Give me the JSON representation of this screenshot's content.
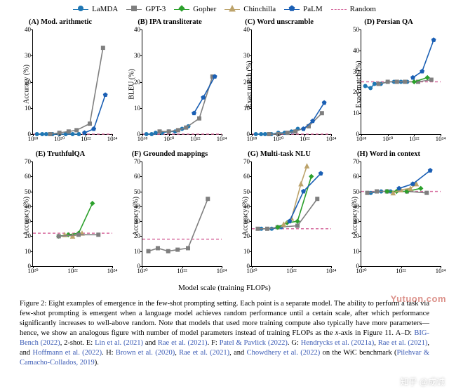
{
  "colors": {
    "lamda": "#1f77b4",
    "gpt3": "#7f7f7f",
    "gopher": "#2ca02c",
    "chinchilla": "#bca36b",
    "palm": "#1a5fb4",
    "random": "#d66b9e",
    "axis": "#000000",
    "bg": "#ffffff",
    "watermark1": "#c0392b"
  },
  "legend": [
    {
      "key": "lamda",
      "label": "LaMDA",
      "marker": "circle",
      "line": "solid"
    },
    {
      "key": "gpt3",
      "label": "GPT-3",
      "marker": "square",
      "line": "solid"
    },
    {
      "key": "gopher",
      "label": "Gopher",
      "marker": "diamond",
      "line": "solid"
    },
    {
      "key": "chinchilla",
      "label": "Chinchilla",
      "marker": "triangle",
      "line": "solid"
    },
    {
      "key": "palm",
      "label": "PaLM",
      "marker": "pentagon",
      "line": "solid"
    },
    {
      "key": "random",
      "label": "Random",
      "marker": "none",
      "line": "dashed"
    }
  ],
  "layout": {
    "rows": 2,
    "cols": 4,
    "marker_size": 6,
    "line_width": 1.6,
    "font_family": "serif",
    "title_fontsize": 10.5,
    "axis_fontsize": 10,
    "tick_fontsize": 9
  },
  "x_axis": {
    "label": "Model scale (training FLOPs)",
    "scale": "log",
    "lim": [
      1e+18,
      1e+24
    ],
    "ticks": [
      1e+18,
      1e+20,
      1e+22,
      1e+24
    ],
    "tick_labels": [
      "10¹⁸",
      "10²⁰",
      "10²²",
      "10²⁴"
    ]
  },
  "x_axis_row2": {
    "lim": [
      1e+20,
      1e+24
    ],
    "ticks": [
      1e+20,
      1e+22,
      1e+24
    ],
    "tick_labels": [
      "10²⁰",
      "10²²",
      "10²⁴"
    ]
  },
  "panels": [
    {
      "id": "A",
      "title": "(A) Mod. arithmetic",
      "ylabel": "Accuracy (%)",
      "ylim": [
        0,
        40
      ],
      "yticks": [
        0,
        10,
        20,
        30,
        40
      ],
      "xmode": "row1",
      "random_y": 0,
      "series": {
        "lamda": [
          [
            2e+18,
            0
          ],
          [
            5e+18,
            0
          ],
          [
            1e+19,
            0
          ],
          [
            3e+19,
            0
          ],
          [
            1e+20,
            0
          ],
          [
            3e+20,
            0
          ],
          [
            1e+21,
            0
          ],
          [
            3e+21,
            0
          ]
        ],
        "gpt3": [
          [
            2e+19,
            0
          ],
          [
            1e+20,
            0.5
          ],
          [
            5e+20,
            1
          ],
          [
            2e+21,
            1.5
          ],
          [
            2e+22,
            4
          ],
          [
            2e+23,
            33
          ]
        ],
        "palm": [
          [
            8e+21,
            0.5
          ],
          [
            4e+22,
            2
          ],
          [
            3e+23,
            15
          ]
        ]
      }
    },
    {
      "id": "B",
      "title": "(B) IPA transliterate",
      "ylabel": "BLEU (%)",
      "ylim": [
        0,
        40
      ],
      "yticks": [
        0,
        10,
        20,
        30,
        40
      ],
      "xmode": "row1",
      "random_y": 0,
      "series": {
        "lamda": [
          [
            2e+18,
            0
          ],
          [
            5e+18,
            0
          ],
          [
            1e+19,
            0.5
          ],
          [
            3e+19,
            0.5
          ],
          [
            1e+20,
            1
          ],
          [
            3e+20,
            1
          ],
          [
            1e+21,
            2
          ],
          [
            3e+21,
            3
          ]
        ],
        "gpt3": [
          [
            2e+19,
            1
          ],
          [
            1e+20,
            1
          ],
          [
            5e+20,
            1.5
          ],
          [
            2e+21,
            2.5
          ],
          [
            2e+22,
            6
          ],
          [
            2e+23,
            22
          ]
        ],
        "palm": [
          [
            8e+21,
            8
          ],
          [
            4e+22,
            14
          ],
          [
            3e+23,
            22
          ]
        ]
      }
    },
    {
      "id": "C",
      "title": "(C) Word unscramble",
      "ylabel": "Exact match (%)",
      "ylim": [
        0,
        40
      ],
      "yticks": [
        0,
        10,
        20,
        30,
        40
      ],
      "xmode": "row1",
      "random_y": 0,
      "series": {
        "lamda": [
          [
            2e+18,
            0
          ],
          [
            5e+18,
            0
          ],
          [
            1e+19,
            0
          ],
          [
            3e+19,
            0
          ],
          [
            1e+20,
            0.5
          ],
          [
            3e+20,
            0.5
          ],
          [
            1e+21,
            1
          ],
          [
            3e+21,
            2
          ]
        ],
        "gpt3": [
          [
            2e+19,
            0
          ],
          [
            1e+20,
            0
          ],
          [
            5e+20,
            0.5
          ],
          [
            2e+21,
            1
          ],
          [
            2e+22,
            3
          ],
          [
            2e+23,
            8
          ]
        ],
        "palm": [
          [
            8e+21,
            2
          ],
          [
            4e+22,
            5
          ],
          [
            3e+23,
            12
          ]
        ]
      }
    },
    {
      "id": "D",
      "title": "(D) Persian QA",
      "ylabel": "Exact match (%)",
      "ylim": [
        0,
        50
      ],
      "yticks": [
        0,
        10,
        20,
        30,
        40,
        50
      ],
      "xmode": "row1",
      "random_y": 25,
      "series": {
        "lamda": [
          [
            2e+18,
            23
          ],
          [
            5e+18,
            22
          ],
          [
            1e+19,
            24
          ],
          [
            3e+19,
            24
          ],
          [
            1e+20,
            25
          ],
          [
            3e+20,
            25
          ],
          [
            1e+21,
            25
          ],
          [
            3e+21,
            25
          ]
        ],
        "gpt3": [
          [
            2e+19,
            24
          ],
          [
            1e+20,
            25
          ],
          [
            5e+20,
            25
          ],
          [
            2e+21,
            25
          ],
          [
            2e+22,
            25
          ],
          [
            2e+23,
            26
          ]
        ],
        "gopher": [
          [
            1e+22,
            25
          ],
          [
            1e+23,
            27
          ]
        ],
        "palm": [
          [
            8e+21,
            27
          ],
          [
            4e+22,
            30
          ],
          [
            3e+23,
            45
          ]
        ]
      }
    },
    {
      "id": "E",
      "title": "(E) TruthfulQA",
      "ylabel": "Accuracy (%)",
      "ylim": [
        0,
        70
      ],
      "yticks": [
        0,
        10,
        20,
        30,
        40,
        50,
        60,
        70
      ],
      "xmode": "row2",
      "random_y": 22,
      "series": {
        "gopher": [
          [
            2e+21,
            20
          ],
          [
            6e+21,
            21
          ],
          [
            2e+22,
            22
          ],
          [
            1e+23,
            42
          ]
        ],
        "chinchilla": [
          [
            4e+21,
            21
          ],
          [
            1e+22,
            20
          ],
          [
            3e+22,
            22
          ]
        ],
        "gpt3": [
          [
            2e+21,
            20
          ],
          [
            2e+22,
            21
          ],
          [
            2e+23,
            21
          ]
        ]
      }
    },
    {
      "id": "F",
      "title": "(F) Grounded mappings",
      "ylabel": "Accuracy (%)",
      "ylim": [
        0,
        70
      ],
      "yticks": [
        0,
        10,
        20,
        30,
        40,
        50,
        60,
        70
      ],
      "xmode": "row2",
      "random_y": 18,
      "series": {
        "gpt3": [
          [
            2e+20,
            10
          ],
          [
            6e+20,
            12
          ],
          [
            2e+21,
            10
          ],
          [
            6e+21,
            11
          ],
          [
            2e+22,
            12
          ],
          [
            2e+23,
            45
          ]
        ]
      }
    },
    {
      "id": "G",
      "title": "(G) Multi-task NLU",
      "ylabel": "Accuracy (%)",
      "ylim": [
        0,
        70
      ],
      "yticks": [
        0,
        10,
        20,
        30,
        40,
        50,
        60,
        70
      ],
      "xmode": "row2",
      "random_y": 25,
      "series": {
        "lamda": [
          [
            3e+20,
            25
          ],
          [
            1e+21,
            25
          ],
          [
            3e+21,
            26
          ]
        ],
        "gpt3": [
          [
            2e+20,
            25
          ],
          [
            6e+20,
            25
          ],
          [
            2e+21,
            26
          ],
          [
            2e+22,
            27
          ],
          [
            2e+23,
            45
          ]
        ],
        "gopher": [
          [
            2e+21,
            26
          ],
          [
            6e+21,
            29
          ],
          [
            2e+22,
            30
          ],
          [
            1e+23,
            60
          ]
        ],
        "chinchilla": [
          [
            4e+21,
            28
          ],
          [
            1e+22,
            32
          ],
          [
            3e+22,
            55
          ],
          [
            6e+22,
            67
          ]
        ],
        "palm": [
          [
            8e+21,
            30
          ],
          [
            4e+22,
            50
          ],
          [
            3e+23,
            62
          ]
        ]
      }
    },
    {
      "id": "H",
      "title": "(H) Word in context",
      "ylabel": "Accuracy (%)",
      "ylim": [
        0,
        70
      ],
      "yticks": [
        0,
        10,
        20,
        30,
        40,
        50,
        60,
        70
      ],
      "xmode": "row2",
      "random_y": 50,
      "series": {
        "lamda": [
          [
            3e+20,
            49
          ],
          [
            1e+21,
            50
          ],
          [
            3e+21,
            50
          ]
        ],
        "gpt3": [
          [
            2e+20,
            49
          ],
          [
            6e+20,
            50
          ],
          [
            2e+21,
            50
          ],
          [
            2e+22,
            50
          ],
          [
            2e+23,
            49
          ]
        ],
        "gopher": [
          [
            2e+21,
            50
          ],
          [
            6e+21,
            50
          ],
          [
            2e+22,
            50
          ],
          [
            1e+23,
            52
          ]
        ],
        "chinchilla": [
          [
            4e+21,
            49
          ],
          [
            1e+22,
            51
          ],
          [
            3e+22,
            52
          ],
          [
            6e+22,
            55
          ]
        ],
        "palm": [
          [
            8e+21,
            52
          ],
          [
            4e+22,
            55
          ],
          [
            3e+23,
            64
          ]
        ]
      }
    }
  ],
  "caption_html": "Figure 2: Eight examples of emergence in the few-shot prompting setting. Each point is a separate model. The ability to perform a task via few-shot prompting is emergent when a language model achieves random performance until a certain scale, after which performance significantly increases to well-above random. Note that models that used more training compute also typically have more parameters—hence, we show an analogous figure with number of model parameters instead of training FLOPs as the <i>x</i>-axis in Figure 11. A–D: <span style='color:#3b5bb5'>BIG-Bench (2022)</span>, 2-shot. E: <span style='color:#3b5bb5'>Lin et al. (2021)</span> and <span style='color:#3b5bb5'>Rae et al. (2021)</span>. F: <span style='color:#3b5bb5'>Patel &amp; Pavlick (2022)</span>. G: <span style='color:#3b5bb5'>Hendrycks et al. (2021a)</span>, <span style='color:#3b5bb5'>Rae et al. (2021)</span>, and <span style='color:#3b5bb5'>Hoffmann et al. (2022)</span>. H: <span style='color:#3b5bb5'>Brown et al. (2020)</span>, <span style='color:#3b5bb5'>Rae et al. (2021)</span>, and <span style='color:#3b5bb5'>Chowdhery et al. (2022)</span> on the WiC benchmark (<span style='color:#3b5bb5'>Pilehvar &amp; Camacho-Collados, 2019</span>).",
  "watermark1": "Yutuon.com",
  "watermark2": "知乎 @成诚"
}
